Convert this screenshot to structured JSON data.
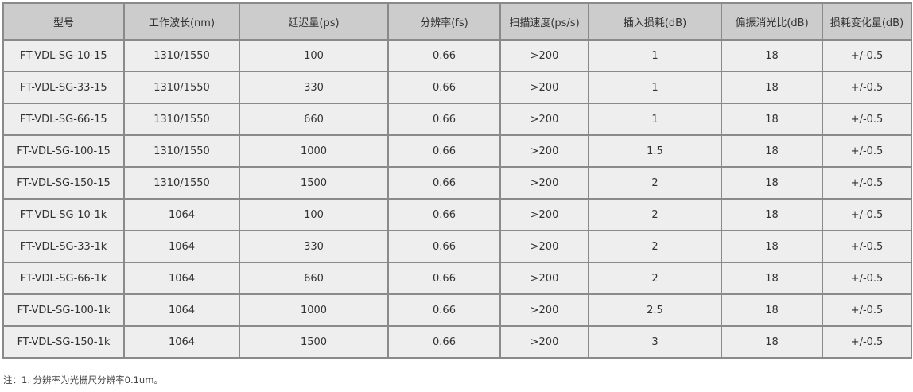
{
  "table": {
    "headers": [
      "型号",
      "工作波长(nm)",
      "延迟量(ps)",
      "分辨率(fs)",
      "扫描速度(ps/s)",
      "插入损耗(dB)",
      "偏振消光比(dB)",
      "损耗变化量(dB)"
    ],
    "rows": [
      [
        "FT-VDL-SG-10-15",
        "1310/1550",
        "100",
        "0.66",
        ">200",
        "1",
        "18",
        "+/-0.5"
      ],
      [
        "FT-VDL-SG-33-15",
        "1310/1550",
        "330",
        "0.66",
        ">200",
        "1",
        "18",
        "+/-0.5"
      ],
      [
        "FT-VDL-SG-66-15",
        "1310/1550",
        "660",
        "0.66",
        ">200",
        "1",
        "18",
        "+/-0.5"
      ],
      [
        "FT-VDL-SG-100-15",
        "1310/1550",
        "1000",
        "0.66",
        ">200",
        "1.5",
        "18",
        "+/-0.5"
      ],
      [
        "FT-VDL-SG-150-15",
        "1310/1550",
        "1500",
        "0.66",
        ">200",
        "2",
        "18",
        "+/-0.5"
      ],
      [
        "FT-VDL-SG-10-1k",
        "1064",
        "100",
        "0.66",
        ">200",
        "2",
        "18",
        "+/-0.5"
      ],
      [
        "FT-VDL-SG-33-1k",
        "1064",
        "330",
        "0.66",
        ">200",
        "2",
        "18",
        "+/-0.5"
      ],
      [
        "FT-VDL-SG-66-1k",
        "1064",
        "660",
        "0.66",
        ">200",
        "2",
        "18",
        "+/-0.5"
      ],
      [
        "FT-VDL-SG-100-1k",
        "1064",
        "1000",
        "0.66",
        ">200",
        "2.5",
        "18",
        "+/-0.5"
      ],
      [
        "FT-VDL-SG-150-1k",
        "1064",
        "1500",
        "0.66",
        ">200",
        "3",
        "18",
        "+/-0.5"
      ]
    ]
  },
  "note": "注：1. 分辨率为光栅尺分辨率0.1um。"
}
